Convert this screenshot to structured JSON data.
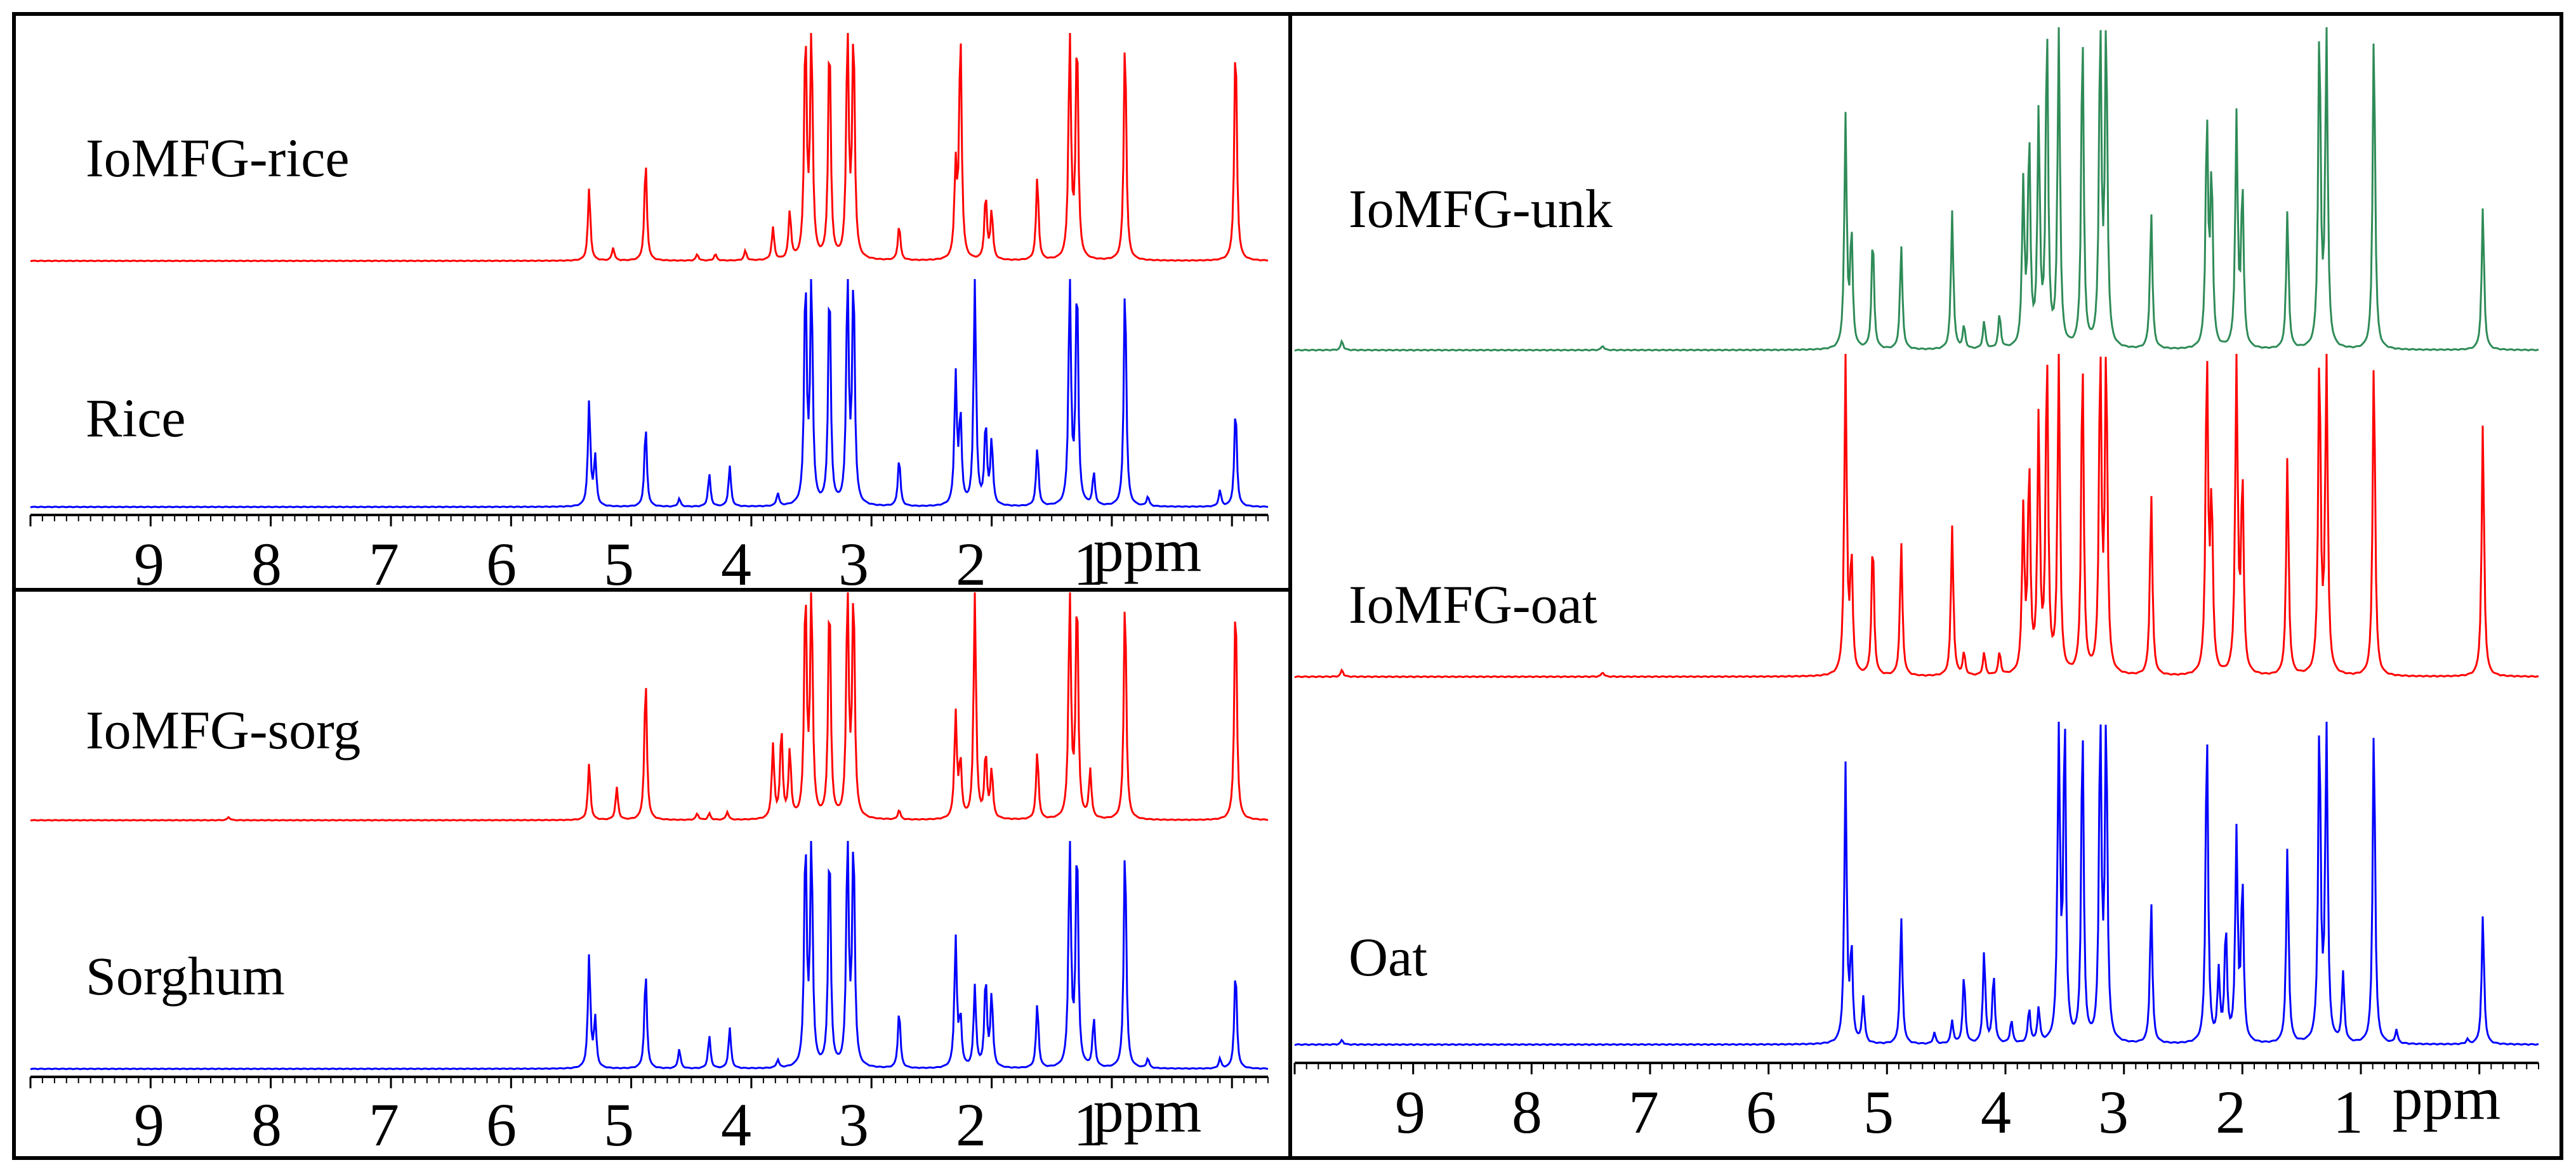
{
  "chart_data": [
    {
      "type": "line",
      "title": "",
      "xlabel": "ppm",
      "ylabel": "",
      "xlim": [
        10,
        -0.3
      ],
      "x_direction": "reversed",
      "xticks": [
        9,
        8,
        7,
        6,
        5,
        4,
        3,
        2,
        1
      ],
      "tick_labels": [
        "9",
        "8",
        "7",
        "6",
        "5",
        "4",
        "3",
        "2",
        "1"
      ],
      "grid": false,
      "series": [
        {
          "name": "IoMFG-rice",
          "color": "#ff0000",
          "peaks": [
            [
              5.35,
              0.45
            ],
            [
              5.15,
              0.08
            ],
            [
              4.88,
              0.62
            ],
            [
              4.45,
              0.04
            ],
            [
              4.3,
              0.04
            ],
            [
              4.05,
              0.06
            ],
            [
              3.82,
              0.2
            ],
            [
              3.68,
              0.3
            ],
            [
              3.55,
              1.4
            ],
            [
              3.5,
              1.4
            ],
            [
              3.35,
              1.4
            ],
            [
              3.2,
              1.4
            ],
            [
              3.15,
              1.4
            ],
            [
              2.77,
              0.22
            ],
            [
              2.3,
              0.55
            ],
            [
              2.26,
              1.4
            ],
            [
              2.05,
              0.4
            ],
            [
              2.0,
              0.3
            ],
            [
              1.62,
              0.52
            ],
            [
              1.35,
              1.4
            ],
            [
              1.29,
              1.4
            ],
            [
              0.89,
              1.4
            ],
            [
              -0.03,
              1.4
            ]
          ]
        },
        {
          "name": "Rice",
          "color": "#0000ff",
          "peaks": [
            [
              5.35,
              0.65
            ],
            [
              5.3,
              0.3
            ],
            [
              4.88,
              0.5
            ],
            [
              4.6,
              0.05
            ],
            [
              4.35,
              0.2
            ],
            [
              4.18,
              0.25
            ],
            [
              3.78,
              0.08
            ],
            [
              3.55,
              1.4
            ],
            [
              3.5,
              1.4
            ],
            [
              3.35,
              1.4
            ],
            [
              3.2,
              1.4
            ],
            [
              3.15,
              1.4
            ],
            [
              2.77,
              0.3
            ],
            [
              2.3,
              0.8
            ],
            [
              2.26,
              0.55
            ],
            [
              2.14,
              1.4
            ],
            [
              2.05,
              0.5
            ],
            [
              2.0,
              0.4
            ],
            [
              1.62,
              0.36
            ],
            [
              1.35,
              1.4
            ],
            [
              1.29,
              1.4
            ],
            [
              1.15,
              0.2
            ],
            [
              0.89,
              1.4
            ],
            [
              0.7,
              0.06
            ],
            [
              0.1,
              0.1
            ],
            [
              -0.03,
              0.62
            ]
          ]
        }
      ]
    },
    {
      "type": "line",
      "title": "",
      "xlabel": "ppm",
      "ylabel": "",
      "xlim": [
        10,
        -0.3
      ],
      "x_direction": "reversed",
      "xticks": [
        9,
        8,
        7,
        6,
        5,
        4,
        3,
        2,
        1
      ],
      "tick_labels": [
        "9",
        "8",
        "7",
        "6",
        "5",
        "4",
        "3",
        "2",
        "1"
      ],
      "grid": false,
      "series": [
        {
          "name": "IoMFG-sorg",
          "color": "#ff0000",
          "peaks": [
            [
              8.35,
              0.02
            ],
            [
              5.35,
              0.35
            ],
            [
              5.12,
              0.2
            ],
            [
              4.88,
              0.88
            ],
            [
              4.45,
              0.04
            ],
            [
              4.35,
              0.04
            ],
            [
              4.2,
              0.05
            ],
            [
              3.82,
              0.45
            ],
            [
              3.75,
              0.55
            ],
            [
              3.68,
              0.42
            ],
            [
              3.55,
              1.4
            ],
            [
              3.5,
              1.4
            ],
            [
              3.35,
              1.4
            ],
            [
              3.2,
              1.4
            ],
            [
              3.15,
              1.4
            ],
            [
              2.77,
              0.06
            ],
            [
              2.3,
              0.65
            ],
            [
              2.26,
              0.35
            ],
            [
              2.14,
              1.4
            ],
            [
              2.05,
              0.4
            ],
            [
              2.0,
              0.3
            ],
            [
              1.62,
              0.42
            ],
            [
              1.35,
              1.4
            ],
            [
              1.29,
              1.4
            ],
            [
              1.18,
              0.3
            ],
            [
              0.89,
              1.4
            ],
            [
              -0.03,
              1.4
            ]
          ]
        },
        {
          "name": "Sorghum",
          "color": "#0000ff",
          "peaks": [
            [
              5.35,
              0.7
            ],
            [
              5.3,
              0.3
            ],
            [
              4.88,
              0.6
            ],
            [
              4.6,
              0.12
            ],
            [
              4.35,
              0.2
            ],
            [
              4.18,
              0.25
            ],
            [
              3.78,
              0.05
            ],
            [
              3.55,
              1.4
            ],
            [
              3.5,
              1.4
            ],
            [
              3.35,
              1.4
            ],
            [
              3.2,
              1.4
            ],
            [
              3.15,
              1.4
            ],
            [
              2.77,
              0.36
            ],
            [
              2.3,
              0.8
            ],
            [
              2.26,
              0.3
            ],
            [
              2.14,
              0.5
            ],
            [
              2.05,
              0.55
            ],
            [
              2.0,
              0.45
            ],
            [
              1.62,
              0.4
            ],
            [
              1.35,
              1.4
            ],
            [
              1.29,
              1.4
            ],
            [
              1.15,
              0.3
            ],
            [
              0.89,
              1.4
            ],
            [
              0.7,
              0.06
            ],
            [
              0.1,
              0.06
            ],
            [
              -0.03,
              0.62
            ]
          ]
        }
      ]
    },
    {
      "type": "line",
      "title": "",
      "xlabel": "ppm",
      "ylabel": "",
      "xlim": [
        10,
        -0.5
      ],
      "x_direction": "reversed",
      "xticks": [
        9,
        8,
        7,
        6,
        5,
        4,
        3,
        2,
        1
      ],
      "tick_labels": [
        "9",
        "8",
        "7",
        "6",
        "5",
        "4",
        "3",
        "2",
        "1"
      ],
      "grid": false,
      "series": [
        {
          "name": "IoMFG-unk",
          "color": "#2e8b57",
          "peaks": [
            [
              9.6,
              0.04
            ],
            [
              7.4,
              0.02
            ],
            [
              5.35,
              1.0
            ],
            [
              5.3,
              0.5
            ],
            [
              5.12,
              0.5
            ],
            [
              4.88,
              0.45
            ],
            [
              4.45,
              0.6
            ],
            [
              4.35,
              0.1
            ],
            [
              4.18,
              0.12
            ],
            [
              4.05,
              0.15
            ],
            [
              3.85,
              0.7
            ],
            [
              3.8,
              0.9
            ],
            [
              3.72,
              1.0
            ],
            [
              3.65,
              1.4
            ],
            [
              3.55,
              1.4
            ],
            [
              3.35,
              1.4
            ],
            [
              3.2,
              1.4
            ],
            [
              3.15,
              1.4
            ],
            [
              2.77,
              0.6
            ],
            [
              2.3,
              1.0
            ],
            [
              2.26,
              0.75
            ],
            [
              2.05,
              1.0
            ],
            [
              2.0,
              0.7
            ],
            [
              1.62,
              0.6
            ],
            [
              1.35,
              1.4
            ],
            [
              1.29,
              1.4
            ],
            [
              0.89,
              1.4
            ],
            [
              -0.03,
              0.62
            ]
          ]
        },
        {
          "name": "IoMFG-oat",
          "color": "#ff0000",
          "peaks": [
            [
              9.6,
              0.03
            ],
            [
              7.4,
              0.02
            ],
            [
              5.35,
              1.4
            ],
            [
              5.3,
              0.5
            ],
            [
              5.12,
              0.6
            ],
            [
              4.88,
              0.58
            ],
            [
              4.45,
              0.65
            ],
            [
              4.35,
              0.1
            ],
            [
              4.18,
              0.1
            ],
            [
              4.05,
              0.1
            ],
            [
              3.85,
              0.7
            ],
            [
              3.8,
              0.9
            ],
            [
              3.72,
              1.1
            ],
            [
              3.65,
              1.4
            ],
            [
              3.55,
              1.4
            ],
            [
              3.35,
              1.4
            ],
            [
              3.2,
              1.4
            ],
            [
              3.15,
              1.4
            ],
            [
              2.77,
              0.8
            ],
            [
              2.3,
              1.4
            ],
            [
              2.26,
              0.75
            ],
            [
              2.05,
              1.4
            ],
            [
              2.0,
              0.85
            ],
            [
              1.62,
              0.95
            ],
            [
              1.35,
              1.4
            ],
            [
              1.29,
              1.4
            ],
            [
              0.89,
              1.4
            ],
            [
              -0.03,
              1.1
            ]
          ]
        },
        {
          "name": "Oat",
          "color": "#0000ff",
          "peaks": [
            [
              9.6,
              0.02
            ],
            [
              5.35,
              1.2
            ],
            [
              5.3,
              0.4
            ],
            [
              5.2,
              0.2
            ],
            [
              4.88,
              0.55
            ],
            [
              4.6,
              0.05
            ],
            [
              4.45,
              0.1
            ],
            [
              4.35,
              0.3
            ],
            [
              4.18,
              0.4
            ],
            [
              4.1,
              0.3
            ],
            [
              3.95,
              0.1
            ],
            [
              3.8,
              0.15
            ],
            [
              3.72,
              0.15
            ],
            [
              3.55,
              1.4
            ],
            [
              3.5,
              1.4
            ],
            [
              3.35,
              1.4
            ],
            [
              3.2,
              1.4
            ],
            [
              3.15,
              1.4
            ],
            [
              2.77,
              0.62
            ],
            [
              2.3,
              1.4
            ],
            [
              2.2,
              0.3
            ],
            [
              2.14,
              0.5
            ],
            [
              2.05,
              0.9
            ],
            [
              2.0,
              0.7
            ],
            [
              1.62,
              0.85
            ],
            [
              1.35,
              1.4
            ],
            [
              1.29,
              1.4
            ],
            [
              1.15,
              0.3
            ],
            [
              0.89,
              1.4
            ],
            [
              0.7,
              0.06
            ],
            [
              0.1,
              0.02
            ],
            [
              -0.03,
              0.56
            ]
          ]
        }
      ]
    }
  ]
}
